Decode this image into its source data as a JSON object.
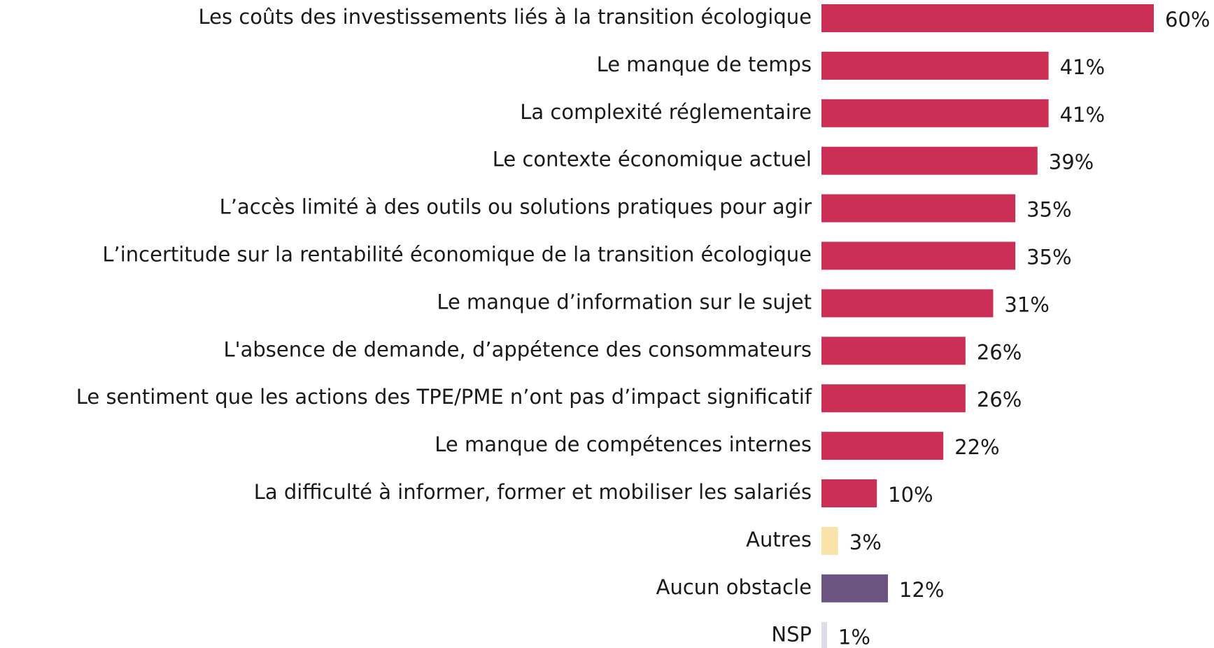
{
  "chart_data": {
    "type": "bar",
    "orientation": "horizontal",
    "categories": [
      "Les coûts des investissements liés à la transition écologique",
      "Le manque de temps",
      "La complexité réglementaire",
      "Le contexte économique actuel",
      "L’accès limité à des outils ou solutions pratiques pour agir",
      "L’incertitude sur la rentabilité économique de la transition écologique",
      "Le manque d’information sur le sujet",
      "L'absence de demande, d’appétence des consommateurs",
      "Le sentiment que les actions des TPE/PME n’ont pas d’impact significatif",
      "Le manque de compétences internes",
      "La difficulté à informer, former et mobiliser les salariés",
      "Autres",
      "Aucun obstacle",
      "NSP"
    ],
    "values": [
      60,
      41,
      41,
      39,
      35,
      35,
      31,
      26,
      26,
      22,
      10,
      3,
      12,
      1
    ],
    "value_labels": [
      "60%",
      "41%",
      "41%",
      "39%",
      "35%",
      "35%",
      "31%",
      "26%",
      "26%",
      "22%",
      "10%",
      "3%",
      "12%",
      "1%"
    ],
    "colors": [
      "#cc2f55",
      "#cc2f55",
      "#cc2f55",
      "#cc2f55",
      "#cc2f55",
      "#cc2f55",
      "#cc2f55",
      "#cc2f55",
      "#cc2f55",
      "#cc2f55",
      "#cc2f55",
      "#f9e3a8",
      "#6b5480",
      "#dcdcea"
    ]
  }
}
